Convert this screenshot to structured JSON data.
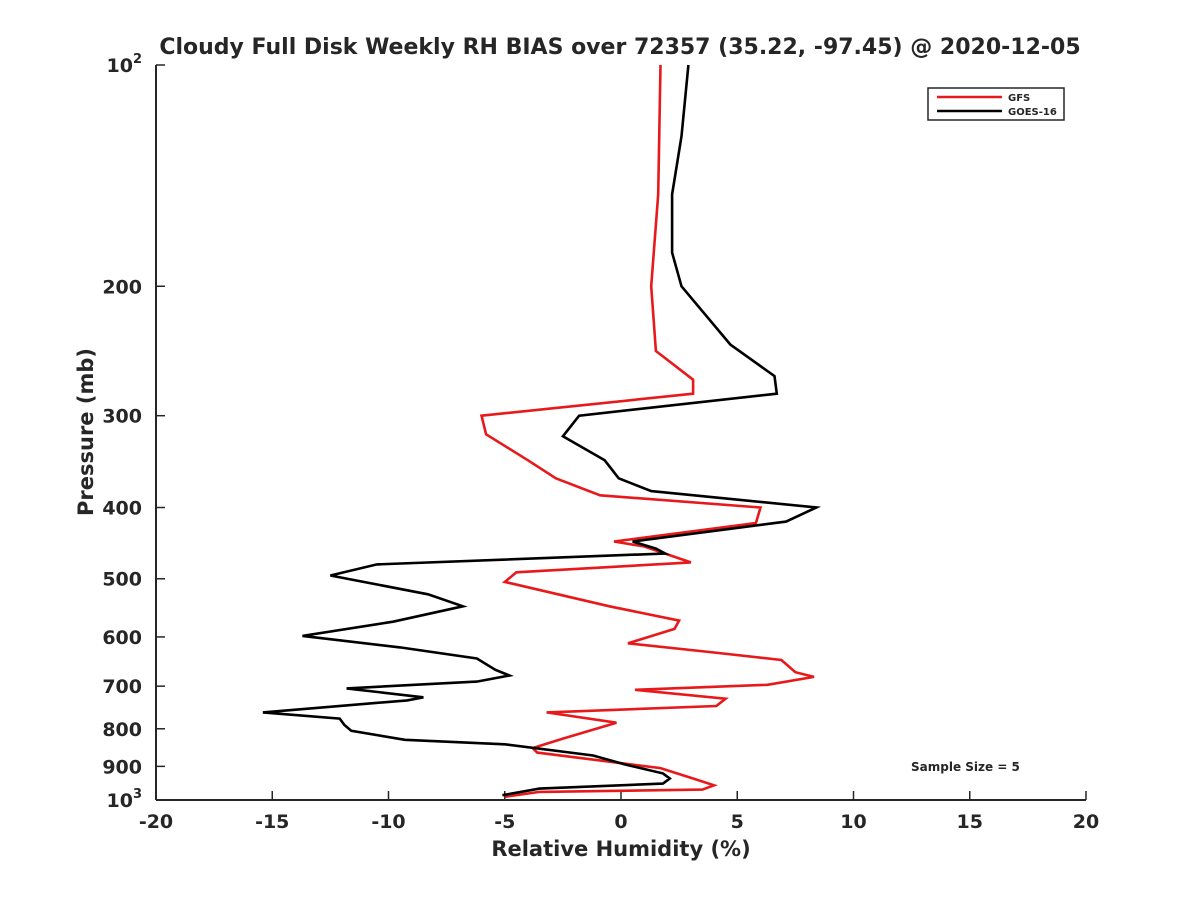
{
  "chart_data": {
    "type": "line",
    "title": "Cloudy Full Disk Weekly RH BIAS over 72357 (35.22, -97.45) @ 2020-12-05",
    "xlabel": "Relative Humidity (%)",
    "ylabel": "Pressure (mb)",
    "xlim": [
      -20,
      20
    ],
    "ylim": [
      1000,
      100
    ],
    "y_scale": "log",
    "y_reversed": true,
    "grid": false,
    "x_ticks": [
      "-20",
      "-15",
      "-10",
      "-5",
      "0",
      "5",
      "10",
      "15",
      "20"
    ],
    "y_ticks": [
      {
        "value": 100,
        "label": "10",
        "sup": "2"
      },
      {
        "value": 200,
        "label": "200",
        "sup": ""
      },
      {
        "value": 300,
        "label": "300",
        "sup": ""
      },
      {
        "value": 400,
        "label": "400",
        "sup": ""
      },
      {
        "value": 500,
        "label": "500",
        "sup": ""
      },
      {
        "value": 600,
        "label": "600",
        "sup": ""
      },
      {
        "value": 700,
        "label": "700",
        "sup": ""
      },
      {
        "value": 800,
        "label": "800",
        "sup": ""
      },
      {
        "value": 900,
        "label": "900",
        "sup": ""
      },
      {
        "value": 1000,
        "label": "10",
        "sup": "3"
      }
    ],
    "legend_position": "top-right",
    "annotation": "Sample Size = 5",
    "series": [
      {
        "name": "GFS",
        "color": "#e8191a",
        "points": [
          {
            "x": 1.7,
            "p": 100
          },
          {
            "x": 1.6,
            "p": 150
          },
          {
            "x": 1.3,
            "p": 200
          },
          {
            "x": 1.5,
            "p": 245
          },
          {
            "x": 3.1,
            "p": 268
          },
          {
            "x": 3.1,
            "p": 280
          },
          {
            "x": -6.0,
            "p": 300
          },
          {
            "x": -5.8,
            "p": 318
          },
          {
            "x": -4.0,
            "p": 345
          },
          {
            "x": -2.8,
            "p": 365
          },
          {
            "x": -0.9,
            "p": 385
          },
          {
            "x": 6.0,
            "p": 400
          },
          {
            "x": 5.8,
            "p": 420
          },
          {
            "x": -0.3,
            "p": 445
          },
          {
            "x": 1.0,
            "p": 452
          },
          {
            "x": 3.0,
            "p": 475
          },
          {
            "x": -4.5,
            "p": 490
          },
          {
            "x": -5.0,
            "p": 505
          },
          {
            "x": -0.5,
            "p": 545
          },
          {
            "x": 2.5,
            "p": 570
          },
          {
            "x": 2.3,
            "p": 585
          },
          {
            "x": 0.3,
            "p": 612
          },
          {
            "x": 4.0,
            "p": 630
          },
          {
            "x": 6.9,
            "p": 645
          },
          {
            "x": 7.5,
            "p": 670
          },
          {
            "x": 8.3,
            "p": 680
          },
          {
            "x": 6.3,
            "p": 697
          },
          {
            "x": 0.6,
            "p": 708
          },
          {
            "x": 4.5,
            "p": 728
          },
          {
            "x": 4.1,
            "p": 745
          },
          {
            "x": -3.2,
            "p": 760
          },
          {
            "x": -0.2,
            "p": 785
          },
          {
            "x": -2.5,
            "p": 825
          },
          {
            "x": -3.8,
            "p": 850
          },
          {
            "x": -3.6,
            "p": 862
          },
          {
            "x": 1.7,
            "p": 905
          },
          {
            "x": 3.1,
            "p": 935
          },
          {
            "x": 4.0,
            "p": 955
          },
          {
            "x": 3.5,
            "p": 968
          },
          {
            "x": -3.5,
            "p": 975
          },
          {
            "x": -5.0,
            "p": 990
          }
        ]
      },
      {
        "name": "GOES-16",
        "color": "#000000",
        "points": [
          {
            "x": 2.9,
            "p": 100
          },
          {
            "x": 2.6,
            "p": 125
          },
          {
            "x": 2.2,
            "p": 150
          },
          {
            "x": 2.2,
            "p": 180
          },
          {
            "x": 2.6,
            "p": 200
          },
          {
            "x": 4.7,
            "p": 240
          },
          {
            "x": 6.6,
            "p": 265
          },
          {
            "x": 6.7,
            "p": 280
          },
          {
            "x": -1.8,
            "p": 300
          },
          {
            "x": -2.5,
            "p": 320
          },
          {
            "x": -0.7,
            "p": 345
          },
          {
            "x": -0.1,
            "p": 365
          },
          {
            "x": 1.3,
            "p": 380
          },
          {
            "x": 8.4,
            "p": 400
          },
          {
            "x": 7.1,
            "p": 418
          },
          {
            "x": 0.5,
            "p": 445
          },
          {
            "x": 1.5,
            "p": 455
          },
          {
            "x": 1.9,
            "p": 462
          },
          {
            "x": -10.5,
            "p": 478
          },
          {
            "x": -12.5,
            "p": 495
          },
          {
            "x": -8.3,
            "p": 525
          },
          {
            "x": -6.8,
            "p": 545
          },
          {
            "x": -9.8,
            "p": 572
          },
          {
            "x": -13.7,
            "p": 598
          },
          {
            "x": -9.5,
            "p": 620
          },
          {
            "x": -6.2,
            "p": 642
          },
          {
            "x": -5.4,
            "p": 665
          },
          {
            "x": -4.8,
            "p": 677
          },
          {
            "x": -6.2,
            "p": 690
          },
          {
            "x": -11.8,
            "p": 705
          },
          {
            "x": -8.5,
            "p": 725
          },
          {
            "x": -9.2,
            "p": 732
          },
          {
            "x": -15.4,
            "p": 760
          },
          {
            "x": -12.1,
            "p": 775
          },
          {
            "x": -11.9,
            "p": 790
          },
          {
            "x": -11.6,
            "p": 805
          },
          {
            "x": -9.3,
            "p": 828
          },
          {
            "x": -5.0,
            "p": 840
          },
          {
            "x": -1.2,
            "p": 870
          },
          {
            "x": 0.2,
            "p": 895
          },
          {
            "x": 1.8,
            "p": 920
          },
          {
            "x": 2.1,
            "p": 935
          },
          {
            "x": 1.8,
            "p": 950
          },
          {
            "x": -3.5,
            "p": 965
          },
          {
            "x": -5.1,
            "p": 985
          }
        ]
      }
    ]
  }
}
